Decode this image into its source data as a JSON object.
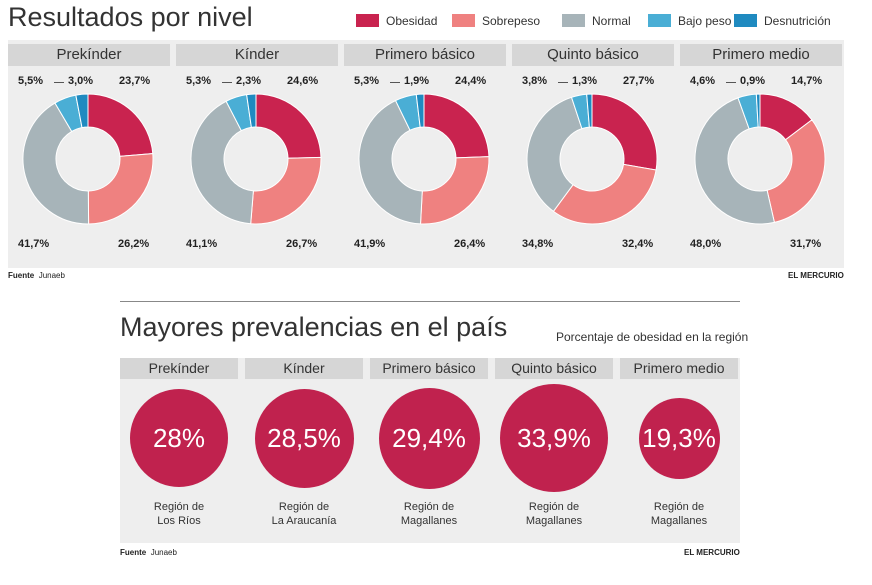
{
  "top": {
    "title": "Resultados por nivel",
    "legend": [
      {
        "label": "Obesidad",
        "color": "#c9234f"
      },
      {
        "label": "Sobrepeso",
        "color": "#ef8180"
      },
      {
        "label": "Normal",
        "color": "#a7b4b9"
      },
      {
        "label": "Bajo peso",
        "color": "#4aaed5"
      },
      {
        "label": "Desnutrición",
        "color": "#1f8ac0"
      }
    ],
    "source_label": "Fuente",
    "source_value": "Junaeb",
    "credit": "EL MERCURIO"
  },
  "chart_data": [
    {
      "type": "pie",
      "variant": "donut",
      "title": "Resultados por nivel",
      "categories": [
        "Obesidad",
        "Sobrepeso",
        "Normal",
        "Bajo peso",
        "Desnutrición"
      ],
      "series": [
        {
          "name": "Prekínder",
          "values": [
            23.7,
            26.2,
            41.7,
            5.5,
            3.0
          ],
          "labels": [
            "23,7%",
            "26,2%",
            "41,7%",
            "5,5%",
            "3,0%"
          ]
        },
        {
          "name": "Kínder",
          "values": [
            24.6,
            26.7,
            41.1,
            5.3,
            2.3
          ],
          "labels": [
            "24,6%",
            "26,7%",
            "41,1%",
            "5,3%",
            "2,3%"
          ]
        },
        {
          "name": "Primero básico",
          "values": [
            24.4,
            26.4,
            41.9,
            5.3,
            1.9
          ],
          "labels": [
            "24,4%",
            "26,4%",
            "41,9%",
            "5,3%",
            "1,9%"
          ]
        },
        {
          "name": "Quinto básico",
          "values": [
            27.7,
            32.4,
            34.8,
            3.8,
            1.3
          ],
          "labels": [
            "27,7%",
            "32,4%",
            "34,8%",
            "3,8%",
            "1,3%"
          ]
        },
        {
          "name": "Primero medio",
          "values": [
            14.7,
            31.7,
            48.0,
            4.6,
            0.9
          ],
          "labels": [
            "14,7%",
            "31,7%",
            "48,0%",
            "4,6%",
            "0,9%"
          ]
        }
      ]
    },
    {
      "type": "bubble",
      "title": "Mayores prevalencias en el país",
      "subtitle": "Porcentaje de obesidad en la región",
      "categories": [
        "Prekínder",
        "Kínder",
        "Primero básico",
        "Quinto básico",
        "Primero medio"
      ],
      "values": [
        28.0,
        28.5,
        29.4,
        33.9,
        19.3
      ],
      "labels": [
        "28%",
        "28,5%",
        "29,4%",
        "33,9%",
        "19,3%"
      ],
      "regions": [
        [
          "Región de",
          "Los Ríos"
        ],
        [
          "Región de",
          "La Araucanía"
        ],
        [
          "Región de",
          "Magallanes"
        ],
        [
          "Región de",
          "Magallanes"
        ],
        [
          "Región de",
          "Magallanes"
        ]
      ],
      "color": "#c0224e"
    }
  ],
  "bottom": {
    "title": "Mayores prevalencias en el país",
    "subtitle": "Porcentaje de obesidad en la región",
    "source_label": "Fuente",
    "source_value": "Junaeb",
    "credit": "EL MERCURIO"
  }
}
